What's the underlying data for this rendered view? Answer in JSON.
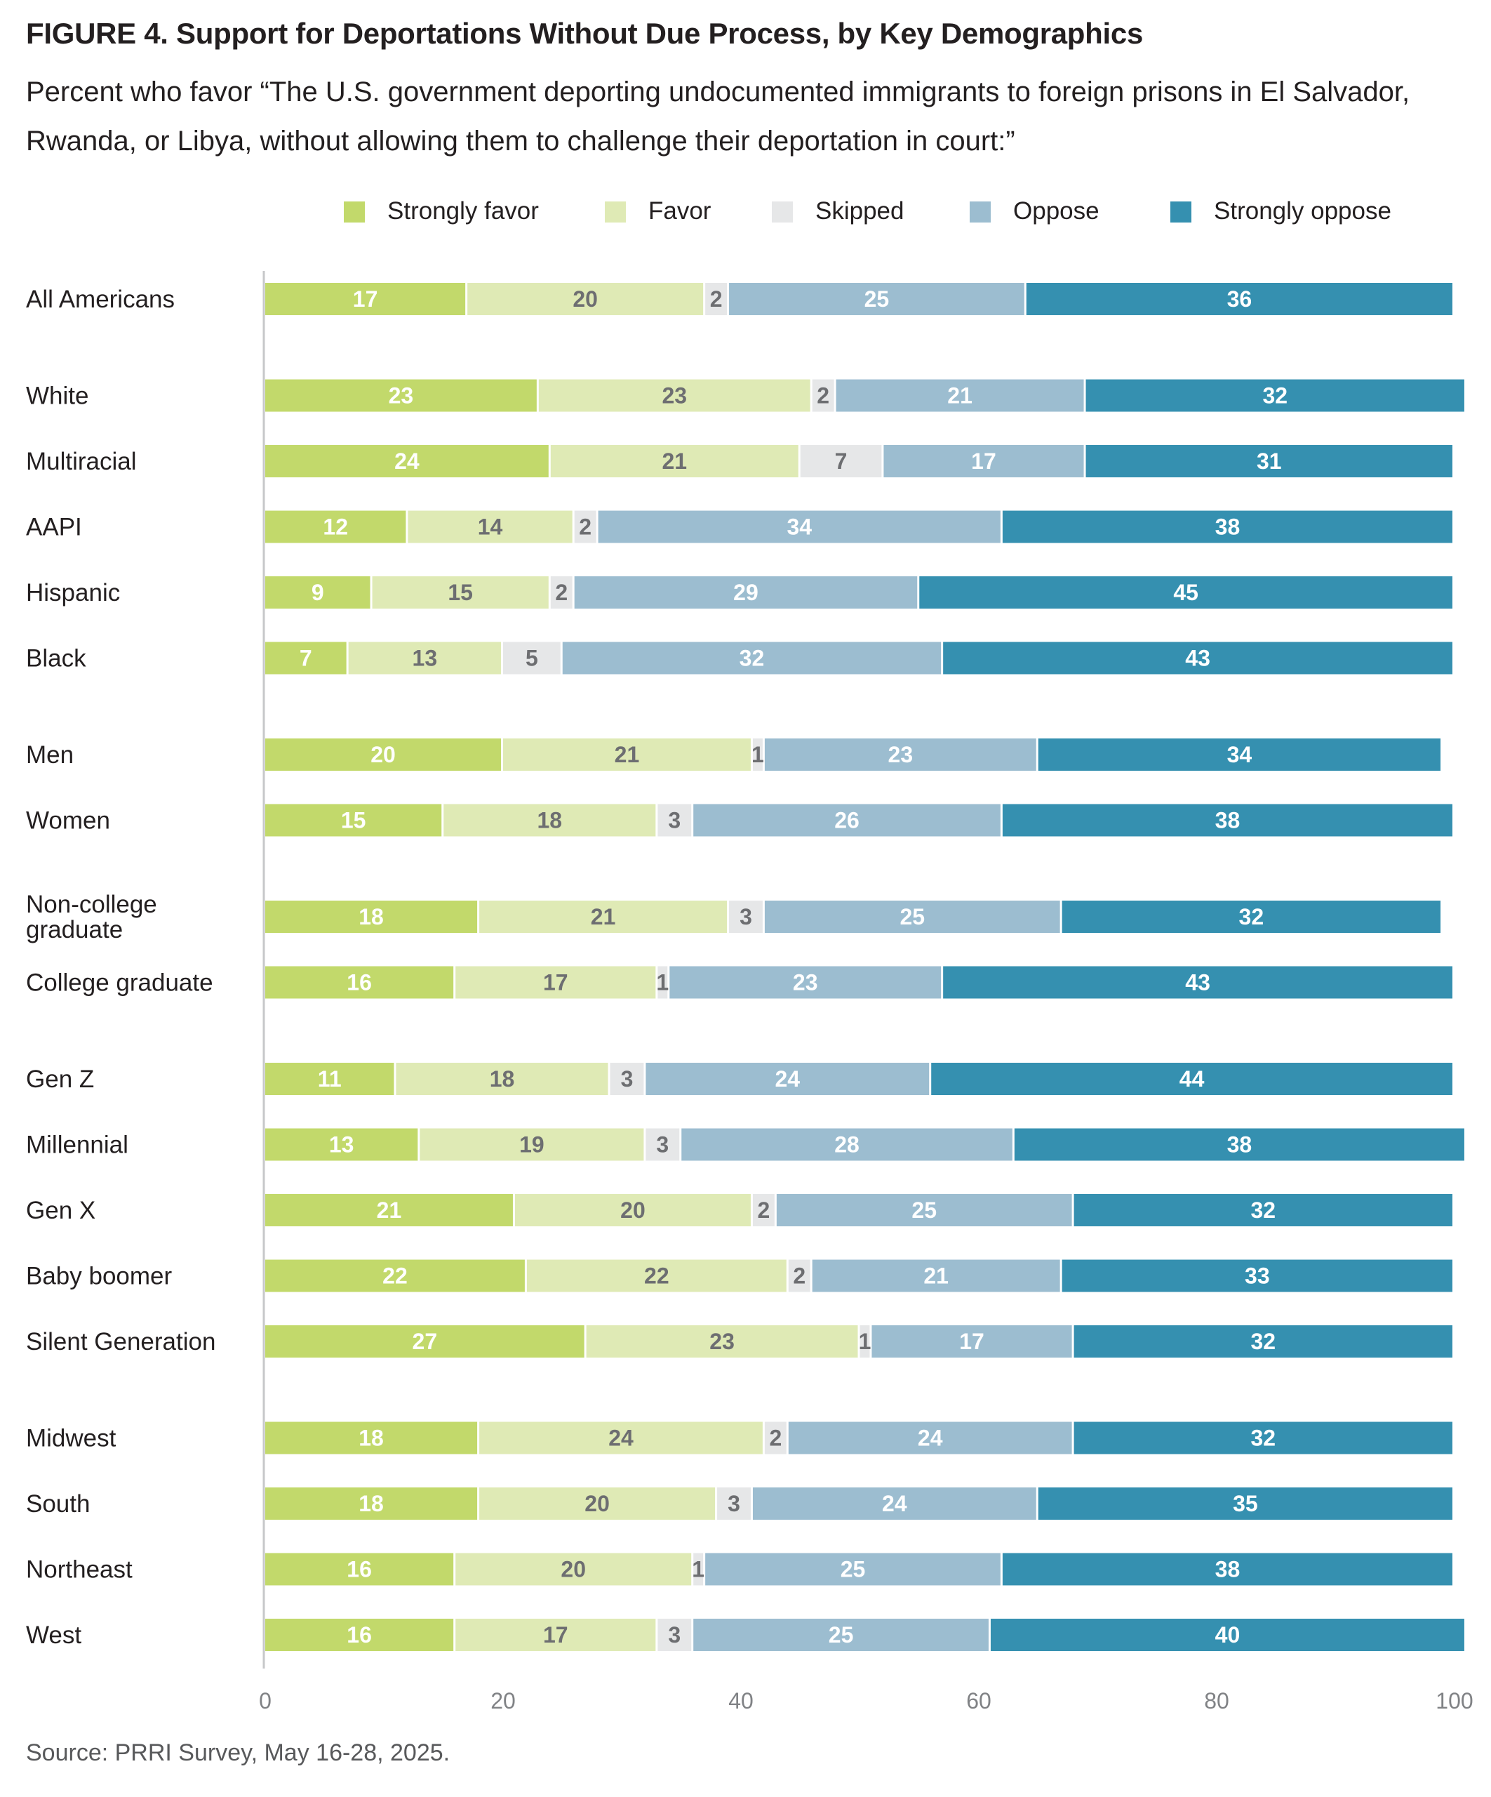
{
  "figure": {
    "title": "FIGURE 4.  Support for Deportations Without Due Process, by Key Demographics",
    "subtitle": "Percent who favor “The U.S. government deporting undocumented immigrants to foreign prisons in El Salvador, Rwanda, or Libya, without allowing them to challenge their deportation in court:”",
    "source": "Source: PRRI Survey, May 16-28, 2025."
  },
  "chart_data": {
    "type": "bar",
    "orientation": "horizontal",
    "stacked": true,
    "xlim": [
      0,
      100
    ],
    "xticks": [
      0,
      20,
      40,
      60,
      80,
      100
    ],
    "legend_position": "top",
    "grid": false,
    "categories": [
      "All Americans",
      "White",
      "Multiracial",
      "AAPI",
      "Hispanic",
      "Black",
      "Men",
      "Women",
      "Non-college graduate",
      "College graduate",
      "Gen Z",
      "Millennial",
      "Gen X",
      "Baby boomer",
      "Silent Generation",
      "Midwest",
      "South",
      "Northeast",
      "West"
    ],
    "groups": [
      [
        "All Americans"
      ],
      [
        "White",
        "Multiracial",
        "AAPI",
        "Hispanic",
        "Black"
      ],
      [
        "Men",
        "Women"
      ],
      [
        "Non-college graduate",
        "College graduate"
      ],
      [
        "Gen Z",
        "Millennial",
        "Gen X",
        "Baby boomer",
        "Silent Generation"
      ],
      [
        "Midwest",
        "South",
        "Northeast",
        "West"
      ]
    ],
    "series": [
      {
        "name": "Strongly favor",
        "color": "#c2d96b",
        "label_color": "#ffffff",
        "values": [
          17,
          23,
          24,
          12,
          9,
          7,
          20,
          15,
          18,
          16,
          11,
          13,
          21,
          22,
          27,
          18,
          18,
          16,
          16
        ]
      },
      {
        "name": "Favor",
        "color": "#dfeab5",
        "label_color": "#6d6e71",
        "values": [
          20,
          23,
          21,
          14,
          15,
          13,
          21,
          18,
          21,
          17,
          18,
          19,
          20,
          22,
          23,
          24,
          20,
          20,
          17
        ]
      },
      {
        "name": "Skipped",
        "color": "#e6e7e8",
        "label_color": "#6d6e71",
        "values": [
          2,
          2,
          7,
          2,
          2,
          5,
          1,
          3,
          3,
          1,
          3,
          3,
          2,
          2,
          1,
          2,
          3,
          1,
          3
        ]
      },
      {
        "name": "Oppose",
        "color": "#9cbdd0",
        "label_color": "#ffffff",
        "values": [
          25,
          21,
          17,
          34,
          29,
          32,
          23,
          26,
          25,
          23,
          24,
          28,
          25,
          21,
          17,
          24,
          24,
          25,
          25
        ]
      },
      {
        "name": "Strongly oppose",
        "color": "#3590b0",
        "label_color": "#ffffff",
        "values": [
          36,
          32,
          31,
          38,
          45,
          43,
          34,
          38,
          32,
          43,
          44,
          38,
          32,
          33,
          32,
          32,
          35,
          38,
          40
        ]
      }
    ]
  }
}
